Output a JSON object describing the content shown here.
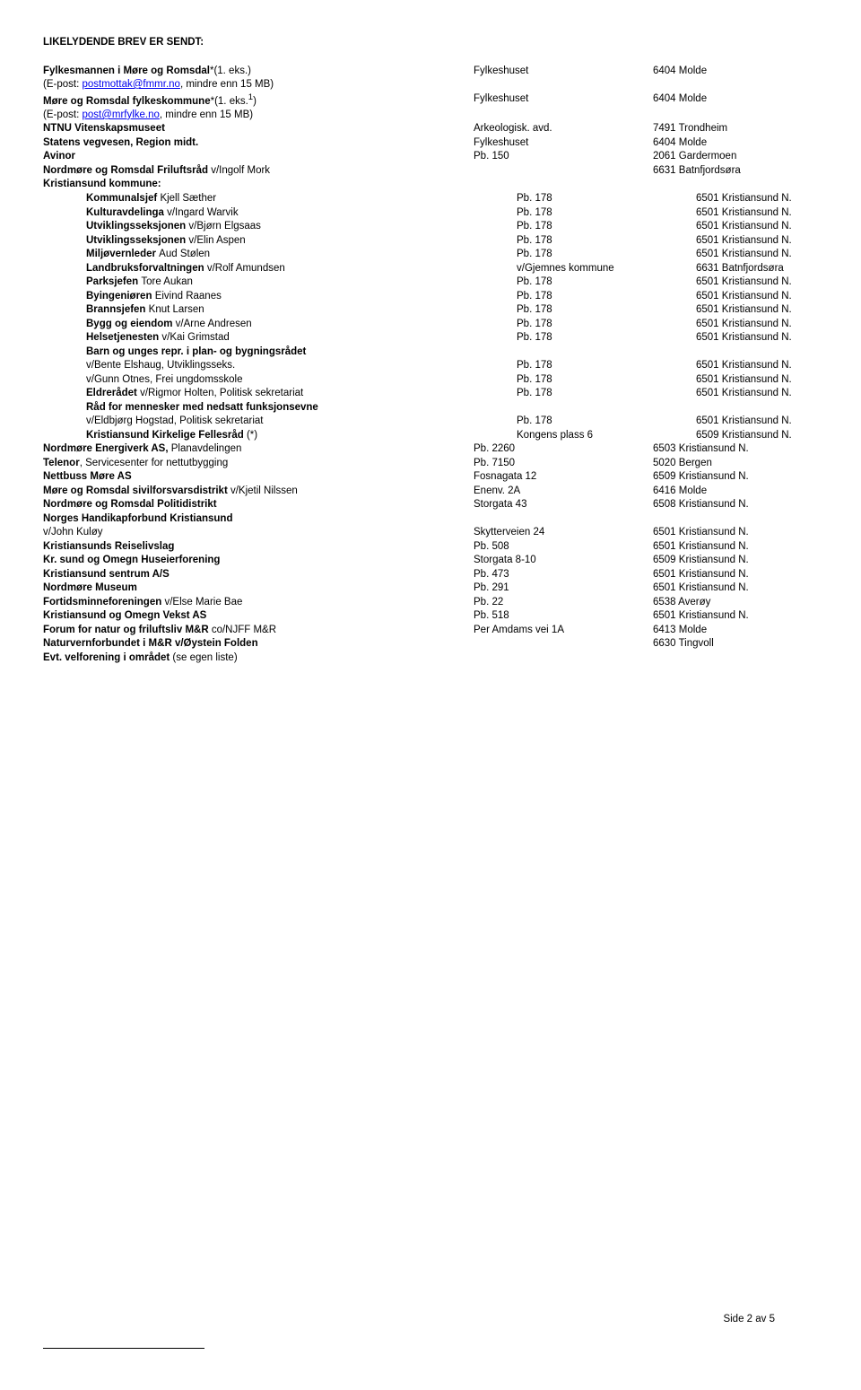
{
  "title": "LIKELYDENDE BREV ER SENDT:",
  "rows": [
    {
      "c1_pre_bold": "Fylkesmannen i Møre og Romsdal",
      "c1_post": "*(1. eks.)",
      "c2": "Fylkeshuset",
      "c3": "6404 Molde"
    },
    {
      "c1_pre": "(E-post: ",
      "c1_link": "postmottak@fmmr.no",
      "c1_post": ", mindre enn 15 MB)"
    },
    {
      "c1_pre_bold": "Møre og Romsdal fylkeskommune",
      "c1_post": "*(1. eks.",
      "c1_sup": "1",
      "c1_post2": ")",
      "c2": "Fylkeshuset",
      "c3": "6404 Molde"
    },
    {
      "c1_pre": "(E-post: ",
      "c1_link": "post@mrfylke.no",
      "c1_post": ", mindre enn 15 MB)"
    },
    {
      "c1_bold": "NTNU Vitenskapsmuseet",
      "c2": "Arkeologisk. avd.",
      "c3": "7491 Trondheim"
    },
    {
      "c1_bold": "Statens vegvesen, Region midt.",
      "c2": "Fylkeshuset",
      "c3": "6404 Molde"
    },
    {
      "c1_bold": "Avinor",
      "c2": "Pb. 150",
      "c3": "2061 Gardermoen"
    },
    {
      "c1_pre_bold": "Nordmøre og Romsdal Friluftsråd ",
      "c1_post": "v/Ingolf Mork",
      "c2": "",
      "c3": "6631 Batnfjordsøra"
    },
    {
      "c1_bold": "Kristiansund kommune:"
    },
    {
      "indent": true,
      "c1_pre_bold": "Kommunalsjef ",
      "c1_post": "Kjell Sæther",
      "c2": "Pb. 178",
      "c3": "6501 Kristiansund N."
    },
    {
      "indent": true,
      "c1_pre_bold": "Kulturavdelinga ",
      "c1_post": "v/Ingard Warvik",
      "c2": "Pb. 178",
      "c3": "6501 Kristiansund N."
    },
    {
      "indent": true,
      "c1_pre_bold": "Utviklingsseksjonen ",
      "c1_post": "v/Bjørn Elgsaas",
      "c2": "Pb. 178",
      "c3": "6501 Kristiansund N."
    },
    {
      "indent": true,
      "c1_pre_bold": "Utviklingsseksjonen ",
      "c1_post": "v/Elin Aspen",
      "c2": "Pb. 178",
      "c3": "6501 Kristiansund N."
    },
    {
      "indent": true,
      "c1_pre_bold": "Miljøvernleder ",
      "c1_post": "Aud Stølen",
      "c2": "Pb. 178",
      "c3": "6501 Kristiansund N."
    },
    {
      "indent": true,
      "c1_pre_bold": "Landbruksforvaltningen ",
      "c1_post": "v/Rolf Amundsen",
      "c2": "v/Gjemnes kommune",
      "c3": "6631 Batnfjordsøra"
    },
    {
      "indent": true,
      "c1_pre_bold": "Parksjefen ",
      "c1_post": "Tore Aukan",
      "c2": "Pb. 178",
      "c3": "6501 Kristiansund N."
    },
    {
      "indent": true,
      "c1_pre_bold": "Byingeniøren ",
      "c1_post": "Eivind Raanes",
      "c2": "Pb. 178",
      "c3": "6501 Kristiansund N."
    },
    {
      "indent": true,
      "c1_pre_bold": "Brannsjefen ",
      "c1_post": "Knut Larsen",
      "c2": "Pb. 178",
      "c3": "6501 Kristiansund N."
    },
    {
      "indent": true,
      "c1_pre_bold": "Bygg og eiendom ",
      "c1_post": "v/Arne Andresen",
      "c2": "Pb. 178",
      "c3": "6501 Kristiansund N."
    },
    {
      "indent": true,
      "c1_pre_bold": "Helsetjenesten ",
      "c1_post": "v/Kai Grimstad",
      "c2": "Pb. 178",
      "c3": "6501 Kristiansund N."
    },
    {
      "indent": true,
      "c1_bold": "Barn og unges repr. i plan- og bygningsrådet"
    },
    {
      "indent": true,
      "c1": "v/Bente Elshaug, Utviklingsseks.",
      "c2": "Pb. 178",
      "c3": "6501 Kristiansund N."
    },
    {
      "indent": true,
      "c1": "v/Gunn Otnes, Frei ungdomsskole",
      "c2": "Pb. 178",
      "c3": "6501 Kristiansund N."
    },
    {
      "indent": true,
      "c1_pre_bold": "Eldrerådet ",
      "c1_post": "v/Rigmor Holten, Politisk sekretariat",
      "c2": "Pb. 178",
      "c3": "6501 Kristiansund N."
    },
    {
      "indent": true,
      "c1_bold": "Råd for mennesker med nedsatt funksjonsevne"
    },
    {
      "indent": true,
      "c1": "v/Eldbjørg Hogstad, Politisk sekretariat",
      "c2": "Pb. 178",
      "c3": "6501 Kristiansund N."
    },
    {
      "indent": true,
      "c1_pre_bold": "Kristiansund Kirkelige Fellesråd ",
      "c1_post": "(*)",
      "c2": "Kongens plass 6",
      "c3": "6509 Kristiansund N."
    },
    {
      "c1_pre_bold": "Nordmøre Energiverk AS, ",
      "c1_post": "Planavdelingen",
      "c2": "Pb. 2260",
      "c3": "6503 Kristiansund N."
    },
    {
      "c1_pre_bold": "Telenor",
      "c1_post": ", Servicesenter for nettutbygging",
      "c2": "Pb. 7150",
      "c3": "5020 Bergen"
    },
    {
      "c1_bold": "Nettbuss Møre AS",
      "c2": "Fosnagata 12",
      "c3": "6509 Kristiansund N."
    },
    {
      "c1_pre_bold": "Møre og Romsdal sivilforsvarsdistrikt ",
      "c1_post": "v/Kjetil Nilssen",
      "c2": "Enenv. 2A",
      "c3": "6416 Molde"
    },
    {
      "c1_bold": "Nordmøre og Romsdal Politidistrikt",
      "c2": "Storgata 43",
      "c3": "6508 Kristiansund N."
    },
    {
      "c1_bold": "Norges Handikapforbund Kristiansund"
    },
    {
      "c1": "v/John Kuløy",
      "c2": "Skytterveien 24",
      "c3": "6501 Kristiansund N."
    },
    {
      "c1_bold": "Kristiansunds Reiselivslag",
      "c2": "Pb. 508",
      "c3": "6501 Kristiansund N."
    },
    {
      "c1_bold": "Kr. sund og Omegn Huseierforening",
      "c2": "Storgata 8-10",
      "c3": "6509 Kristiansund N."
    },
    {
      "c1_bold": "Kristiansund sentrum A/S",
      "c2": "Pb. 473",
      "c3": "6501 Kristiansund N."
    },
    {
      "c1_bold": "Nordmøre Museum",
      "c2": "Pb. 291",
      "c3": "6501 Kristiansund N."
    },
    {
      "c1_pre_bold": "Fortidsminneforeningen ",
      "c1_post": "v/Else Marie Bae",
      "c2": "Pb. 22",
      "c3": "6538 Averøy"
    },
    {
      "c1_bold": "Kristiansund og Omegn Vekst AS",
      "c2": "Pb. 518",
      "c3": "6501 Kristiansund N."
    },
    {
      "c1_pre_bold": "Forum for natur og friluftsliv M&R ",
      "c1_post": "co/NJFF M&R",
      "c2": "Per Amdams vei 1A",
      "c3": "6413 Molde"
    },
    {
      "c1_bold": "Naturvernforbundet i M&R v/Øystein Folden",
      "c2": "",
      "c3": "6630 Tingvoll"
    },
    {
      "c1_pre_bold": "Evt. velforening i området ",
      "c1_post": "(se egen liste)"
    }
  ],
  "footer": "Side 2 av 5"
}
